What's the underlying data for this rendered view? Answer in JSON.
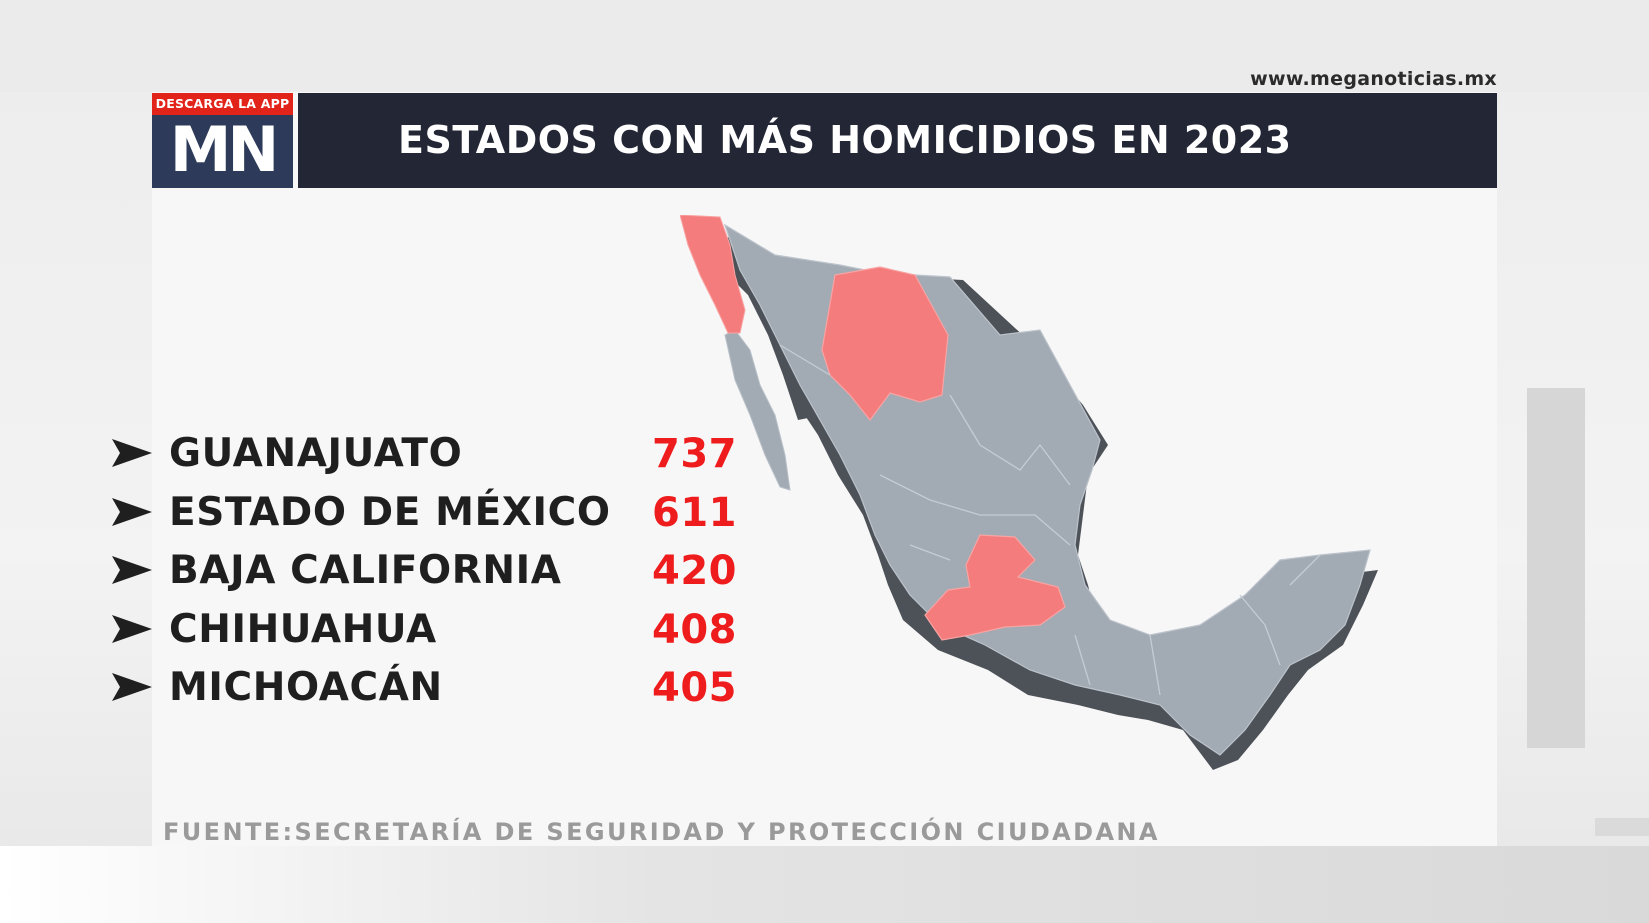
{
  "website": "www.meganoticias.mx",
  "logo": {
    "tag": "DESCARGA LA APP",
    "letters": "MN",
    "brand_color": "#2d3a5a",
    "tag_color": "#e2231a"
  },
  "title": "ESTADOS CON MÁS HOMICIDIOS EN 2023",
  "stats": [
    {
      "state": "GUANAJUATO",
      "value": "737"
    },
    {
      "state": "ESTADO DE MÉXICO",
      "value": "611"
    },
    {
      "state": "BAJA CALIFORNIA",
      "value": "420"
    },
    {
      "state": "CHIHUAHUA",
      "value": "408"
    },
    {
      "state": "MICHOACÁN",
      "value": "405"
    }
  ],
  "source": "FUENTE:SECRETARÍA DE SEGURIDAD Y PROTECCIÓN CIUDADANA",
  "map": {
    "highlighted_states": [
      "Baja California",
      "Chihuahua",
      "Guanajuato",
      "Michoacán",
      "Estado de México"
    ],
    "highlight_color": "#f47c7c",
    "base_color": "#a2aab4",
    "shadow_color": "#4a4e55",
    "icon": "arrow-bullet-icon"
  },
  "colors": {
    "value_red": "#ee1c1c",
    "title_bar": "#232634"
  }
}
